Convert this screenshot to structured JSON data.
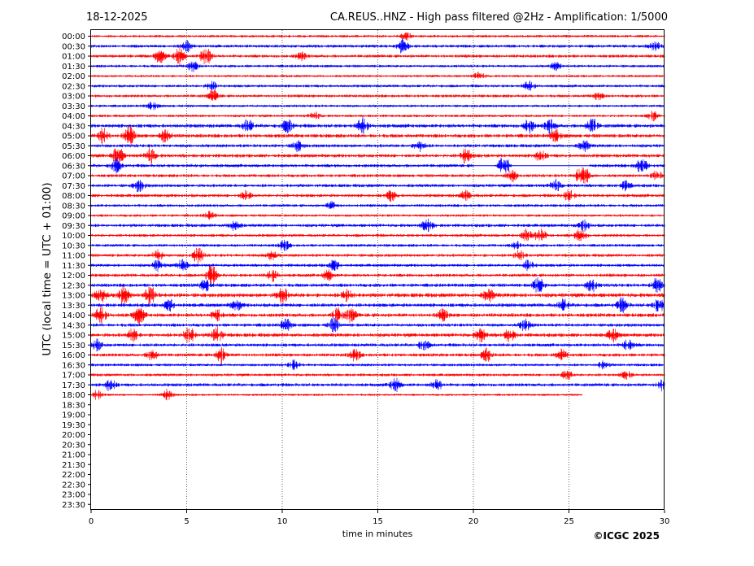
{
  "header": {
    "date": "18-12-2025",
    "title": "CA.REUS..HNZ - High pass filtered @2Hz - Amplification: 1/5000"
  },
  "footer": {
    "copyright": "©ICGC 2025"
  },
  "colors": {
    "trace_even": "#ff0000",
    "trace_odd": "#0000ff",
    "axis": "#000000",
    "grid": "#000000"
  },
  "chart_data": {
    "type": "line",
    "title": "CA.REUS..HNZ - High pass filtered @2Hz - Amplification: 1/5000",
    "subtitle": "18-12-2025",
    "xlabel": "time in minutes",
    "ylabel": "UTC (local time = UTC + 01:00)",
    "xlim": [
      0,
      30
    ],
    "x_ticks": [
      0,
      5,
      10,
      15,
      20,
      25,
      30
    ],
    "grid": "vertical dotted at x ticks",
    "row_labels": [
      "00:00",
      "00:30",
      "01:00",
      "01:30",
      "02:00",
      "02:30",
      "03:00",
      "03:30",
      "04:00",
      "04:30",
      "05:00",
      "05:30",
      "06:00",
      "06:30",
      "07:00",
      "07:30",
      "08:00",
      "08:30",
      "09:00",
      "09:30",
      "10:00",
      "10:30",
      "11:00",
      "11:30",
      "12:00",
      "12:30",
      "13:00",
      "13:30",
      "14:00",
      "14:30",
      "15:00",
      "15:30",
      "16:00",
      "16:30",
      "17:00",
      "17:30",
      "18:00",
      "18:30",
      "19:00",
      "19:30",
      "20:00",
      "20:30",
      "21:00",
      "21:30",
      "22:00",
      "22:30",
      "23:00",
      "23:30"
    ],
    "series": [
      {
        "row": "00:00",
        "x_start": 0,
        "x_end": 30,
        "level": 0.35,
        "events": [
          [
            16.5,
            0.5
          ]
        ]
      },
      {
        "row": "00:30",
        "x_start": 0,
        "x_end": 30,
        "level": 0.45,
        "events": [
          [
            5.0,
            0.7
          ],
          [
            16.3,
            1.0
          ],
          [
            29.5,
            0.6
          ]
        ]
      },
      {
        "row": "01:00",
        "x_start": 0,
        "x_end": 30,
        "level": 0.45,
        "events": [
          [
            3.6,
            0.9
          ],
          [
            4.6,
            1.2
          ],
          [
            6.0,
            1.4
          ],
          [
            11.0,
            0.5
          ]
        ]
      },
      {
        "row": "01:30",
        "x_start": 0,
        "x_end": 30,
        "level": 0.35,
        "events": [
          [
            5.3,
            0.7
          ],
          [
            24.3,
            0.5
          ]
        ]
      },
      {
        "row": "02:00",
        "x_start": 0,
        "x_end": 30,
        "level": 0.3,
        "events": [
          [
            20.3,
            0.5
          ]
        ]
      },
      {
        "row": "02:30",
        "x_start": 0,
        "x_end": 30,
        "level": 0.4,
        "events": [
          [
            6.3,
            0.6
          ],
          [
            22.9,
            0.6
          ]
        ]
      },
      {
        "row": "03:00",
        "x_start": 0,
        "x_end": 30,
        "level": 0.4,
        "events": [
          [
            6.4,
            0.8
          ],
          [
            26.5,
            0.5
          ]
        ]
      },
      {
        "row": "03:30",
        "x_start": 0,
        "x_end": 30,
        "level": 0.35,
        "events": [
          [
            3.2,
            0.5
          ]
        ]
      },
      {
        "row": "04:00",
        "x_start": 0,
        "x_end": 30,
        "level": 0.35,
        "events": [
          [
            11.7,
            0.5
          ],
          [
            29.4,
            0.6
          ]
        ]
      },
      {
        "row": "04:30",
        "x_start": 0,
        "x_end": 30,
        "level": 0.6,
        "events": [
          [
            8.2,
            0.8
          ],
          [
            10.3,
            0.9
          ],
          [
            14.2,
            1.0
          ],
          [
            22.9,
            0.9
          ],
          [
            24.0,
            0.9
          ],
          [
            26.2,
            1.1
          ]
        ]
      },
      {
        "row": "05:00",
        "x_start": 0,
        "x_end": 30,
        "level": 0.6,
        "events": [
          [
            0.6,
            1.1
          ],
          [
            2.0,
            1.2
          ],
          [
            3.9,
            0.9
          ],
          [
            24.3,
            0.8
          ]
        ]
      },
      {
        "row": "05:30",
        "x_start": 0,
        "x_end": 30,
        "level": 0.5,
        "events": [
          [
            10.8,
            0.7
          ],
          [
            17.2,
            0.7
          ],
          [
            25.8,
            0.7
          ]
        ]
      },
      {
        "row": "06:00",
        "x_start": 0,
        "x_end": 30,
        "level": 0.55,
        "events": [
          [
            1.4,
            1.4
          ],
          [
            3.1,
            1.0
          ],
          [
            19.6,
            1.0
          ],
          [
            23.5,
            0.7
          ]
        ]
      },
      {
        "row": "06:30",
        "x_start": 0,
        "x_end": 30,
        "level": 0.5,
        "gap": [
          20.0,
          26.1
        ],
        "events": [
          [
            1.3,
            0.9
          ],
          [
            21.6,
            2.2
          ],
          [
            28.8,
            1.1
          ]
        ]
      },
      {
        "row": "07:00",
        "x_start": 0,
        "x_end": 30,
        "level": 0.45,
        "events": [
          [
            22.0,
            0.8
          ],
          [
            25.7,
            2.6
          ],
          [
            29.6,
            0.6
          ]
        ]
      },
      {
        "row": "07:30",
        "x_start": 0,
        "x_end": 30,
        "level": 0.5,
        "events": [
          [
            2.5,
            0.8
          ],
          [
            24.3,
            0.8
          ],
          [
            28.0,
            0.6
          ]
        ]
      },
      {
        "row": "08:00",
        "x_start": 0,
        "x_end": 30,
        "level": 0.5,
        "events": [
          [
            8.1,
            0.6
          ],
          [
            15.7,
            0.7
          ],
          [
            19.6,
            0.6
          ],
          [
            25.0,
            0.7
          ]
        ]
      },
      {
        "row": "08:30",
        "x_start": 0,
        "x_end": 30,
        "level": 0.4,
        "events": [
          [
            12.6,
            0.5
          ]
        ]
      },
      {
        "row": "09:00",
        "x_start": 0,
        "x_end": 30,
        "level": 0.35,
        "events": [
          [
            6.2,
            0.5
          ]
        ]
      },
      {
        "row": "09:30",
        "x_start": 0,
        "x_end": 30,
        "level": 0.5,
        "events": [
          [
            7.5,
            0.8
          ],
          [
            17.6,
            0.9
          ],
          [
            25.8,
            0.7
          ]
        ]
      },
      {
        "row": "10:00",
        "x_start": 0,
        "x_end": 30,
        "level": 0.45,
        "events": [
          [
            22.8,
            0.8
          ],
          [
            23.5,
            1.0
          ],
          [
            25.6,
            0.9
          ]
        ]
      },
      {
        "row": "10:30",
        "x_start": 0,
        "x_end": 30,
        "level": 0.4,
        "events": [
          [
            10.1,
            0.7
          ],
          [
            22.3,
            0.5
          ]
        ]
      },
      {
        "row": "11:00",
        "x_start": 0,
        "x_end": 30,
        "level": 0.45,
        "events": [
          [
            3.5,
            0.7
          ],
          [
            5.6,
            1.0
          ],
          [
            9.4,
            0.7
          ],
          [
            22.4,
            0.8
          ]
        ]
      },
      {
        "row": "11:30",
        "x_start": 0,
        "x_end": 30,
        "level": 0.45,
        "events": [
          [
            3.5,
            0.7
          ],
          [
            4.8,
            0.8
          ],
          [
            12.7,
            0.7
          ],
          [
            22.9,
            0.7
          ]
        ]
      },
      {
        "row": "12:00",
        "x_start": 0,
        "x_end": 30,
        "level": 0.5,
        "events": [
          [
            6.3,
            1.3
          ],
          [
            9.5,
            0.7
          ],
          [
            12.4,
            0.7
          ]
        ]
      },
      {
        "row": "12:30",
        "x_start": 0,
        "x_end": 30,
        "level": 0.55,
        "events": [
          [
            6.0,
            0.8
          ],
          [
            23.4,
            1.1
          ],
          [
            26.2,
            0.9
          ],
          [
            29.6,
            1.0
          ]
        ]
      },
      {
        "row": "13:00",
        "x_start": 0,
        "x_end": 30,
        "level": 0.7,
        "events": [
          [
            0.5,
            1.2
          ],
          [
            1.7,
            1.1
          ],
          [
            3.1,
            1.2
          ],
          [
            10.0,
            1.1
          ],
          [
            13.4,
            0.9
          ],
          [
            20.8,
            0.8
          ]
        ]
      },
      {
        "row": "13:30",
        "x_start": 0,
        "x_end": 30,
        "level": 0.6,
        "events": [
          [
            4.1,
            0.7
          ],
          [
            7.6,
            0.7
          ],
          [
            24.7,
            0.7
          ],
          [
            27.8,
            0.9
          ],
          [
            29.7,
            1.0
          ]
        ]
      },
      {
        "row": "14:00",
        "x_start": 0,
        "x_end": 30,
        "level": 0.6,
        "events": [
          [
            0.5,
            1.1
          ],
          [
            2.5,
            1.2
          ],
          [
            6.6,
            0.8
          ],
          [
            12.9,
            0.9
          ],
          [
            13.6,
            0.9
          ],
          [
            18.4,
            0.7
          ]
        ]
      },
      {
        "row": "14:30",
        "x_start": 0,
        "x_end": 30,
        "level": 0.5,
        "events": [
          [
            10.2,
            0.8
          ],
          [
            12.7,
            0.9
          ],
          [
            22.7,
            0.8
          ]
        ]
      },
      {
        "row": "15:00",
        "x_start": 0,
        "x_end": 30,
        "level": 0.6,
        "events": [
          [
            2.2,
            0.8
          ],
          [
            5.1,
            1.3
          ],
          [
            6.6,
            1.1
          ],
          [
            20.4,
            0.9
          ],
          [
            21.9,
            0.8
          ],
          [
            27.3,
            0.8
          ]
        ]
      },
      {
        "row": "15:30",
        "x_start": 0,
        "x_end": 30,
        "level": 0.5,
        "events": [
          [
            0.3,
            0.7
          ],
          [
            17.4,
            0.7
          ],
          [
            28.1,
            0.8
          ]
        ]
      },
      {
        "row": "16:00",
        "x_start": 0,
        "x_end": 30,
        "level": 0.5,
        "events": [
          [
            3.2,
            0.8
          ],
          [
            6.8,
            1.0
          ],
          [
            13.8,
            0.8
          ],
          [
            20.7,
            0.8
          ],
          [
            24.6,
            0.7
          ]
        ]
      },
      {
        "row": "16:30",
        "x_start": 0,
        "x_end": 30,
        "level": 0.4,
        "events": [
          [
            10.6,
            0.6
          ],
          [
            26.8,
            0.5
          ]
        ]
      },
      {
        "row": "17:00",
        "x_start": 0,
        "x_end": 30,
        "level": 0.4,
        "events": [
          [
            24.9,
            0.7
          ],
          [
            28.0,
            0.5
          ]
        ]
      },
      {
        "row": "17:30",
        "x_start": 0,
        "x_end": 30,
        "level": 0.5,
        "events": [
          [
            1.0,
            0.8
          ],
          [
            15.9,
            0.9
          ],
          [
            18.1,
            0.7
          ],
          [
            29.9,
            0.7
          ]
        ]
      },
      {
        "row": "18:00",
        "x_start": 0,
        "x_end": 25.7,
        "level": 0.25,
        "events": [
          [
            0.3,
            0.6
          ],
          [
            4.0,
            0.7
          ]
        ]
      }
    ]
  }
}
